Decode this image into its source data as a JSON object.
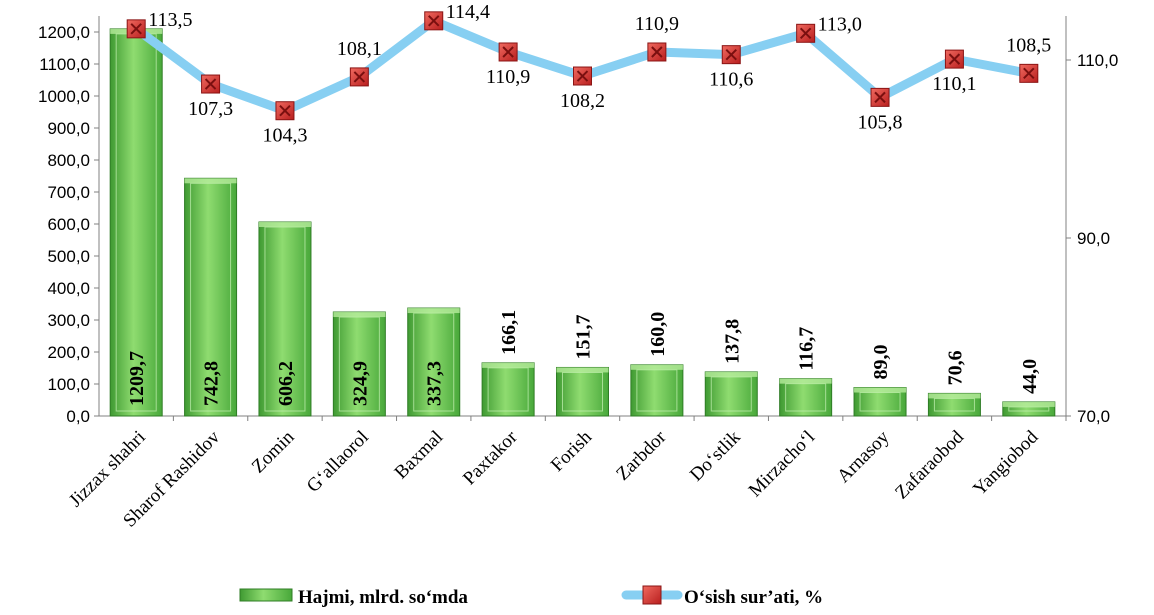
{
  "chart_data": {
    "type": "bar",
    "categories": [
      "Jizzax shahri",
      "Sharof Rashidov",
      "Zomin",
      "G‘allaorol",
      "Baxmal",
      "Paxtakor",
      "Forish",
      "Zarbdor",
      "Do‘stlik",
      "Mirzacho‘l",
      "Arnasoy",
      "Zafaraobod",
      "Yangiobod"
    ],
    "series": [
      {
        "name": "Hajmi, mlrd. so‘mda",
        "type": "bar",
        "axis": "left",
        "color": "#5fbf4a",
        "values": [
          1209.7,
          742.8,
          606.2,
          324.9,
          337.3,
          166.1,
          151.7,
          160.0,
          137.8,
          116.7,
          89.0,
          70.6,
          44.0
        ],
        "labels": [
          "1209,7",
          "742,8",
          "606,2",
          "324,9",
          "337,3",
          "166,1",
          "151,7",
          "160,0",
          "137,8",
          "116,7",
          "89,0",
          "70,6",
          "44,0"
        ]
      },
      {
        "name": "O‘sish sur’ati, %",
        "type": "line",
        "axis": "right",
        "color": "#87cff2",
        "marker_color": "#d9312f",
        "values": [
          113.5,
          107.3,
          104.3,
          108.1,
          114.4,
          110.9,
          108.2,
          110.9,
          110.6,
          113.0,
          105.8,
          110.1,
          108.5
        ],
        "labels": [
          "113,5",
          "107,3",
          "104,3",
          "108,1",
          "114,4",
          "110,9",
          "108,2",
          "110,9",
          "110,6",
          "113,0",
          "105,8",
          "110,1",
          "108,5"
        ]
      }
    ],
    "y_left": {
      "min": 0,
      "max": 1200,
      "ticks": [
        "0,0",
        "100,0",
        "200,0",
        "300,0",
        "400,0",
        "500,0",
        "600,0",
        "700,0",
        "800,0",
        "900,0",
        "1000,0",
        "1100,0",
        "1200,0"
      ]
    },
    "y_right": {
      "min": 70,
      "max": 110,
      "ticks": [
        "70,0",
        "90,0",
        "110,0"
      ]
    },
    "grid": false,
    "legend_position": "bottom"
  }
}
